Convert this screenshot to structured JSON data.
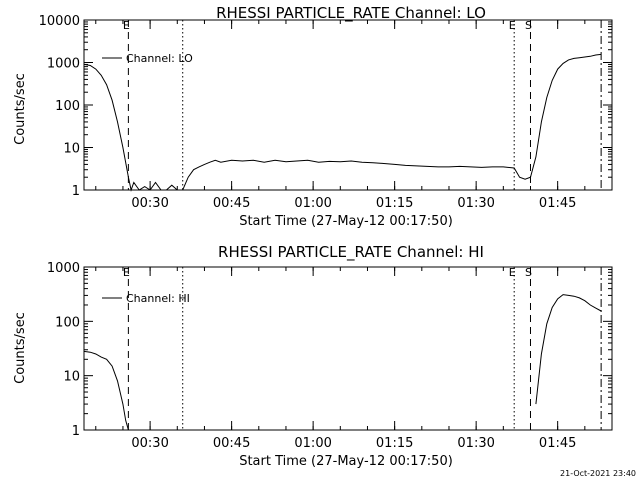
{
  "footer_timestamp": "21-Oct-2021 23:40",
  "chart_data": [
    {
      "type": "line",
      "title": "RHESSI PARTICLE_RATE Channel: LO",
      "xlabel": "Start Time (27-May-12 00:17:50)",
      "ylabel": "Counts/sec",
      "y_scale": "log",
      "ylim": [
        1,
        10000
      ],
      "y_ticks": [
        1,
        10,
        100,
        1000,
        10000
      ],
      "y_tick_labels": [
        "1",
        "10",
        "100",
        "1000",
        "10000"
      ],
      "xlim": [
        "00:17:50",
        "01:55:00"
      ],
      "x_ticks": [
        "00:30",
        "00:45",
        "01:00",
        "01:15",
        "01:30",
        "01:45"
      ],
      "legend": {
        "label": "Channel: LO",
        "position": "top-left"
      },
      "markers": [
        {
          "time": "00:26:00",
          "style": "dashed",
          "label": "E"
        },
        {
          "time": "00:36:00",
          "style": "dotted",
          "label": ""
        },
        {
          "time": "01:37:00",
          "style": "dotted",
          "label": "E"
        },
        {
          "time": "01:40:00",
          "style": "dashed",
          "label": "S"
        },
        {
          "time": "01:53:00",
          "style": "dashdot",
          "label": ""
        }
      ],
      "series": [
        {
          "name": "Channel: LO",
          "x": [
            "00:17:50",
            "00:19:00",
            "00:20:00",
            "00:21:00",
            "00:22:00",
            "00:23:00",
            "00:24:00",
            "00:25:00",
            "00:26:00",
            "00:26:30",
            "00:27:00",
            "00:28:00",
            "00:29:00",
            "00:30:00",
            "00:31:00",
            "00:32:00",
            "00:33:00",
            "00:34:00",
            "00:35:00",
            "00:36:00",
            "00:37:00",
            "00:38:00",
            "00:39:00",
            "00:40:00",
            "00:41:00",
            "00:42:00",
            "00:43:00",
            "00:45:00",
            "00:47:00",
            "00:49:00",
            "00:51:00",
            "00:53:00",
            "00:55:00",
            "00:57:00",
            "00:59:00",
            "01:01:00",
            "01:03:00",
            "01:05:00",
            "01:07:00",
            "01:09:00",
            "01:11:00",
            "01:13:00",
            "01:15:00",
            "01:17:00",
            "01:19:00",
            "01:21:00",
            "01:23:00",
            "01:25:00",
            "01:27:00",
            "01:29:00",
            "01:31:00",
            "01:33:00",
            "01:35:00",
            "01:37:00",
            "01:38:00",
            "01:39:00",
            "01:40:00",
            "01:41:00",
            "01:42:00",
            "01:43:00",
            "01:44:00",
            "01:45:00",
            "01:46:00",
            "01:47:00",
            "01:48:00",
            "01:49:00",
            "01:50:00",
            "01:51:00",
            "01:52:00",
            "01:53:00"
          ],
          "y": [
            900,
            850,
            700,
            500,
            300,
            130,
            40,
            10,
            2,
            1,
            1.5,
            1,
            1.2,
            1,
            1.5,
            1,
            1,
            1.3,
            1,
            1,
            2,
            3,
            3.5,
            4,
            4.5,
            5,
            4.5,
            5,
            4.8,
            5,
            4.5,
            5,
            4.6,
            4.8,
            5,
            4.5,
            4.7,
            4.6,
            4.8,
            4.5,
            4.4,
            4.2,
            4,
            3.8,
            3.7,
            3.6,
            3.5,
            3.5,
            3.6,
            3.5,
            3.4,
            3.5,
            3.5,
            3.3,
            2,
            1.8,
            2,
            6,
            40,
            150,
            380,
            700,
            950,
            1150,
            1250,
            1300,
            1350,
            1400,
            1500,
            1550
          ]
        }
      ]
    },
    {
      "type": "line",
      "title": "RHESSI PARTICLE_RATE Channel: HI",
      "xlabel": "Start Time (27-May-12 00:17:50)",
      "ylabel": "Counts/sec",
      "y_scale": "log",
      "ylim": [
        1,
        1000
      ],
      "y_ticks": [
        1,
        10,
        100,
        1000
      ],
      "y_tick_labels": [
        "1",
        "10",
        "100",
        "1000"
      ],
      "xlim": [
        "00:17:50",
        "01:55:00"
      ],
      "x_ticks": [
        "00:30",
        "00:45",
        "01:00",
        "01:15",
        "01:30",
        "01:45"
      ],
      "legend": {
        "label": "Channel: HI",
        "position": "top-left"
      },
      "markers": [
        {
          "time": "00:26:00",
          "style": "dashed",
          "label": "E"
        },
        {
          "time": "00:36:00",
          "style": "dotted",
          "label": ""
        },
        {
          "time": "01:37:00",
          "style": "dotted",
          "label": "E"
        },
        {
          "time": "01:40:00",
          "style": "dashed",
          "label": "S"
        },
        {
          "time": "01:53:00",
          "style": "dashdot",
          "label": ""
        }
      ],
      "series": [
        {
          "name": "Channel: HI",
          "x": [
            "00:17:50",
            "00:19:00",
            "00:20:00",
            "00:21:00",
            "00:22:00",
            "00:23:00",
            "00:24:00",
            "00:25:00",
            "00:25:30",
            "00:26:00",
            "01:41:00",
            "01:42:00",
            "01:43:00",
            "01:44:00",
            "01:45:00",
            "01:46:00",
            "01:47:00",
            "01:48:00",
            "01:49:00",
            "01:50:00",
            "01:51:00",
            "01:52:00",
            "01:53:00"
          ],
          "y": [
            28,
            27,
            25,
            22,
            20,
            15,
            8,
            3,
            1.5,
            1,
            3,
            25,
            90,
            180,
            260,
            310,
            300,
            290,
            270,
            240,
            200,
            175,
            155
          ],
          "gap_after_index": 9
        }
      ]
    }
  ]
}
